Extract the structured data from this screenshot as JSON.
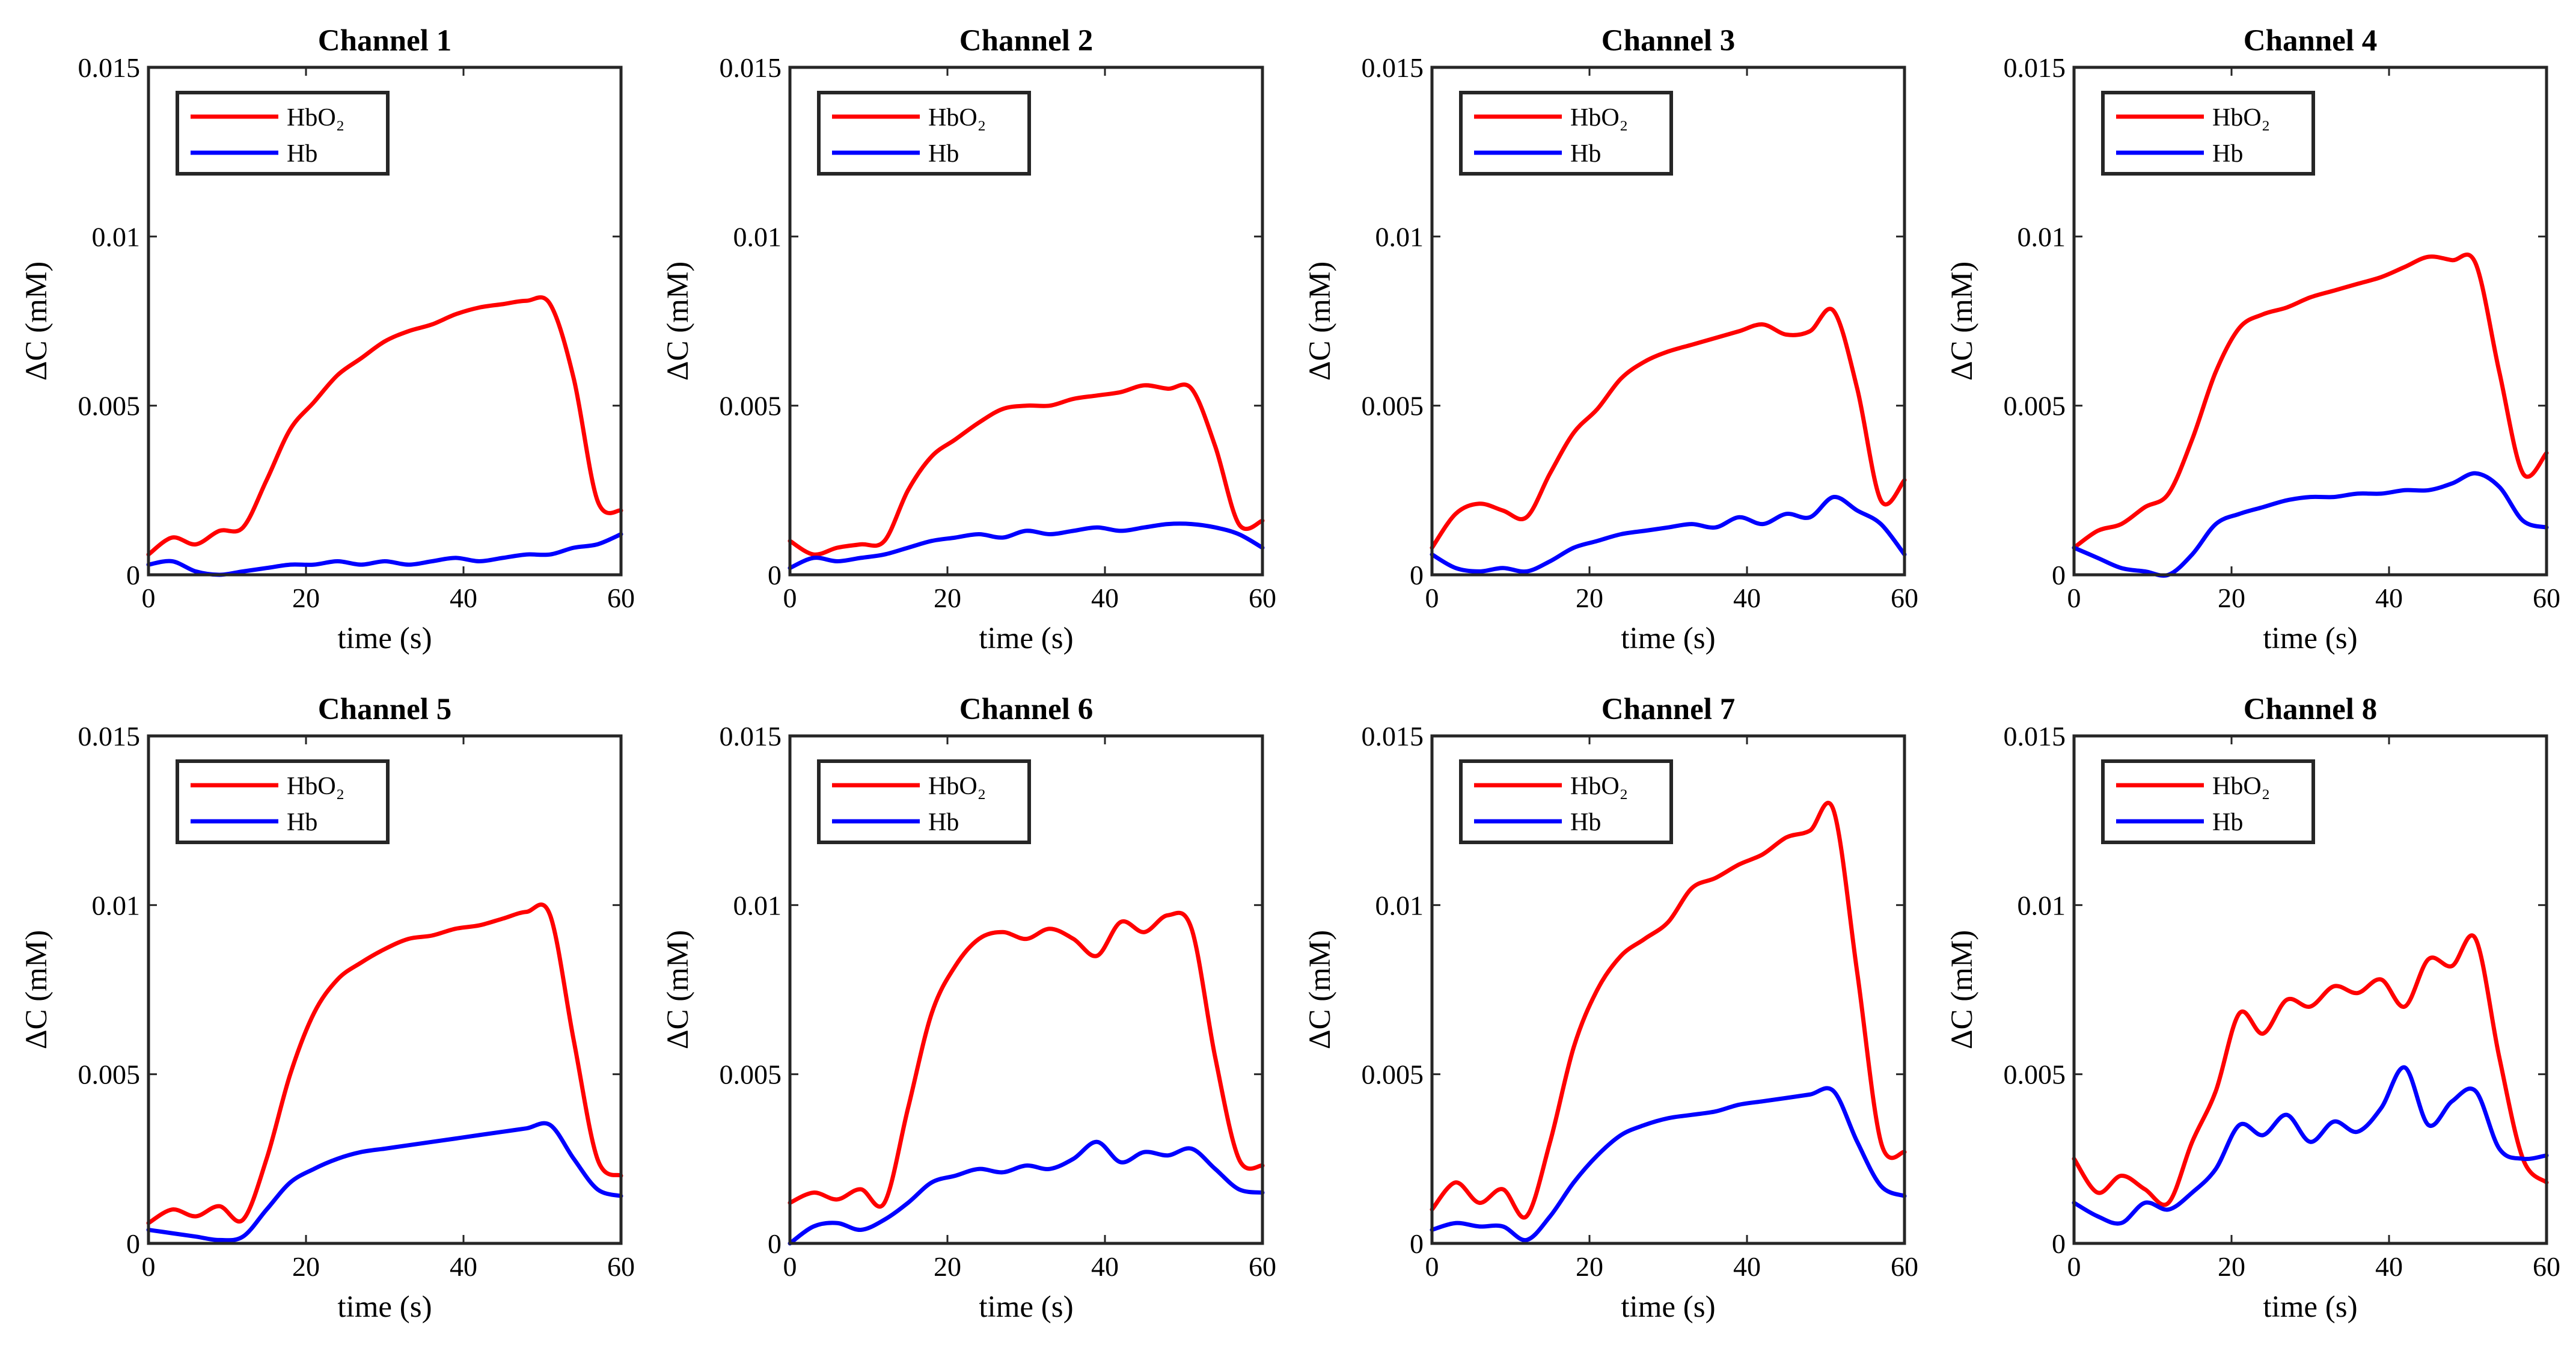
{
  "figure": {
    "background": "#ffffff"
  },
  "chart_data": [
    {
      "type": "line",
      "title": "Channel 1",
      "xlabel": "time (s)",
      "ylabel": "ΔC (mM)",
      "xlim": [
        0,
        60
      ],
      "ylim": [
        0,
        0.015
      ],
      "xticks": [
        "0",
        "20",
        "40",
        "60"
      ],
      "yticks": [
        "0",
        "0.005",
        "0.01",
        "0.015"
      ],
      "legend": {
        "position": "top-left",
        "entries": [
          "HbO₂",
          "Hb"
        ]
      },
      "x": [
        0,
        3,
        6,
        9,
        12,
        15,
        18,
        21,
        24,
        27,
        30,
        33,
        36,
        39,
        42,
        45,
        48,
        51,
        54,
        57,
        60
      ],
      "series": [
        {
          "name": "HbO₂",
          "color": "#ff0000",
          "values": [
            0.0006,
            0.0011,
            0.0009,
            0.0013,
            0.0014,
            0.0028,
            0.0043,
            0.0051,
            0.0059,
            0.0064,
            0.0069,
            0.0072,
            0.0074,
            0.0077,
            0.0079,
            0.008,
            0.0081,
            0.008,
            0.0058,
            0.0022,
            0.0019
          ]
        },
        {
          "name": "Hb",
          "color": "#0000ff",
          "values": [
            0.0003,
            0.0004,
            0.0001,
            0.0,
            0.0001,
            0.0002,
            0.0003,
            0.0003,
            0.0004,
            0.0003,
            0.0004,
            0.0003,
            0.0004,
            0.0005,
            0.0004,
            0.0005,
            0.0006,
            0.0006,
            0.0008,
            0.0009,
            0.0012
          ]
        }
      ]
    },
    {
      "type": "line",
      "title": "Channel 2",
      "xlabel": "time (s)",
      "ylabel": "ΔC (mM)",
      "xlim": [
        0,
        60
      ],
      "ylim": [
        0,
        0.015
      ],
      "xticks": [
        "0",
        "20",
        "40",
        "60"
      ],
      "yticks": [
        "0",
        "0.005",
        "0.01",
        "0.015"
      ],
      "legend": {
        "position": "top-left",
        "entries": [
          "HbO₂",
          "Hb"
        ]
      },
      "x": [
        0,
        3,
        6,
        9,
        12,
        15,
        18,
        21,
        24,
        27,
        30,
        33,
        36,
        39,
        42,
        45,
        48,
        51,
        54,
        57,
        60
      ],
      "series": [
        {
          "name": "HbO₂",
          "color": "#ff0000",
          "values": [
            0.001,
            0.0006,
            0.0008,
            0.0009,
            0.001,
            0.0025,
            0.0035,
            0.004,
            0.0045,
            0.0049,
            0.005,
            0.005,
            0.0052,
            0.0053,
            0.0054,
            0.0056,
            0.0055,
            0.0055,
            0.0038,
            0.0015,
            0.0016
          ]
        },
        {
          "name": "Hb",
          "color": "#0000ff",
          "values": [
            0.0002,
            0.0005,
            0.0004,
            0.0005,
            0.0006,
            0.0008,
            0.001,
            0.0011,
            0.0012,
            0.0011,
            0.0013,
            0.0012,
            0.0013,
            0.0014,
            0.0013,
            0.0014,
            0.0015,
            0.0015,
            0.0014,
            0.0012,
            0.0008
          ]
        }
      ]
    },
    {
      "type": "line",
      "title": "Channel 3",
      "xlabel": "time (s)",
      "ylabel": "ΔC (mM)",
      "xlim": [
        0,
        60
      ],
      "ylim": [
        0,
        0.015
      ],
      "xticks": [
        "0",
        "20",
        "40",
        "60"
      ],
      "yticks": [
        "0",
        "0.005",
        "0.01",
        "0.015"
      ],
      "legend": {
        "position": "top-left",
        "entries": [
          "HbO₂",
          "Hb"
        ]
      },
      "x": [
        0,
        3,
        6,
        9,
        12,
        15,
        18,
        21,
        24,
        27,
        30,
        33,
        36,
        39,
        42,
        45,
        48,
        51,
        54,
        57,
        60
      ],
      "series": [
        {
          "name": "HbO₂",
          "color": "#ff0000",
          "values": [
            0.0008,
            0.0018,
            0.0021,
            0.0019,
            0.0017,
            0.003,
            0.0042,
            0.0049,
            0.0058,
            0.0063,
            0.0066,
            0.0068,
            0.007,
            0.0072,
            0.0074,
            0.0071,
            0.0072,
            0.0078,
            0.0055,
            0.0022,
            0.0028
          ]
        },
        {
          "name": "Hb",
          "color": "#0000ff",
          "values": [
            0.0006,
            0.0002,
            0.0001,
            0.0002,
            0.0001,
            0.0004,
            0.0008,
            0.001,
            0.0012,
            0.0013,
            0.0014,
            0.0015,
            0.0014,
            0.0017,
            0.0015,
            0.0018,
            0.0017,
            0.0023,
            0.0019,
            0.0015,
            0.0006
          ]
        }
      ]
    },
    {
      "type": "line",
      "title": "Channel 4",
      "xlabel": "time (s)",
      "ylabel": "ΔC (mM)",
      "xlim": [
        0,
        60
      ],
      "ylim": [
        0,
        0.015
      ],
      "xticks": [
        "0",
        "20",
        "40",
        "60"
      ],
      "yticks": [
        "0",
        "0.005",
        "0.01",
        "0.015"
      ],
      "legend": {
        "position": "top-left",
        "entries": [
          "HbO₂",
          "Hb"
        ]
      },
      "x": [
        0,
        3,
        6,
        9,
        12,
        15,
        18,
        21,
        24,
        27,
        30,
        33,
        36,
        39,
        42,
        45,
        48,
        51,
        54,
        57,
        60
      ],
      "series": [
        {
          "name": "HbO₂",
          "color": "#ff0000",
          "values": [
            0.0008,
            0.0013,
            0.0015,
            0.002,
            0.0024,
            0.004,
            0.006,
            0.0073,
            0.0077,
            0.0079,
            0.0082,
            0.0084,
            0.0086,
            0.0088,
            0.0091,
            0.0094,
            0.0093,
            0.0092,
            0.006,
            0.003,
            0.0036
          ]
        },
        {
          "name": "Hb",
          "color": "#0000ff",
          "values": [
            0.0008,
            0.0005,
            0.0002,
            0.0001,
            0.0,
            0.0006,
            0.0015,
            0.0018,
            0.002,
            0.0022,
            0.0023,
            0.0023,
            0.0024,
            0.0024,
            0.0025,
            0.0025,
            0.0027,
            0.003,
            0.0026,
            0.0016,
            0.0014
          ]
        }
      ]
    },
    {
      "type": "line",
      "title": "Channel 5",
      "xlabel": "time (s)",
      "ylabel": "ΔC (mM)",
      "xlim": [
        0,
        60
      ],
      "ylim": [
        0,
        0.015
      ],
      "xticks": [
        "0",
        "20",
        "40",
        "60"
      ],
      "yticks": [
        "0",
        "0.005",
        "0.01",
        "0.015"
      ],
      "legend": {
        "position": "top-left",
        "entries": [
          "HbO₂",
          "Hb"
        ]
      },
      "x": [
        0,
        3,
        6,
        9,
        12,
        15,
        18,
        21,
        24,
        27,
        30,
        33,
        36,
        39,
        42,
        45,
        48,
        51,
        54,
        57,
        60
      ],
      "series": [
        {
          "name": "HbO₂",
          "color": "#ff0000",
          "values": [
            0.0006,
            0.001,
            0.0008,
            0.0011,
            0.0007,
            0.0025,
            0.005,
            0.0068,
            0.0078,
            0.0083,
            0.0087,
            0.009,
            0.0091,
            0.0093,
            0.0094,
            0.0096,
            0.0098,
            0.0097,
            0.006,
            0.0025,
            0.002
          ]
        },
        {
          "name": "Hb",
          "color": "#0000ff",
          "values": [
            0.0004,
            0.0003,
            0.0002,
            0.0001,
            0.0002,
            0.001,
            0.0018,
            0.0022,
            0.0025,
            0.0027,
            0.0028,
            0.0029,
            0.003,
            0.0031,
            0.0032,
            0.0033,
            0.0034,
            0.0035,
            0.0025,
            0.0016,
            0.0014
          ]
        }
      ]
    },
    {
      "type": "line",
      "title": "Channel 6",
      "xlabel": "time (s)",
      "ylabel": "ΔC (mM)",
      "xlim": [
        0,
        60
      ],
      "ylim": [
        0,
        0.015
      ],
      "xticks": [
        "0",
        "20",
        "40",
        "60"
      ],
      "yticks": [
        "0",
        "0.005",
        "0.01",
        "0.015"
      ],
      "legend": {
        "position": "top-left",
        "entries": [
          "HbO₂",
          "Hb"
        ]
      },
      "x": [
        0,
        3,
        6,
        9,
        12,
        15,
        18,
        21,
        24,
        27,
        30,
        33,
        36,
        39,
        42,
        45,
        48,
        51,
        54,
        57,
        60
      ],
      "series": [
        {
          "name": "HbO₂",
          "color": "#ff0000",
          "values": [
            0.0012,
            0.0015,
            0.0013,
            0.0016,
            0.0012,
            0.004,
            0.0068,
            0.0082,
            0.009,
            0.0092,
            0.009,
            0.0093,
            0.009,
            0.0085,
            0.0095,
            0.0092,
            0.0097,
            0.0093,
            0.0055,
            0.0025,
            0.0023
          ]
        },
        {
          "name": "Hb",
          "color": "#0000ff",
          "values": [
            0.0,
            0.0005,
            0.0006,
            0.0004,
            0.0007,
            0.0012,
            0.0018,
            0.002,
            0.0022,
            0.0021,
            0.0023,
            0.0022,
            0.0025,
            0.003,
            0.0024,
            0.0027,
            0.0026,
            0.0028,
            0.0022,
            0.0016,
            0.0015
          ]
        }
      ]
    },
    {
      "type": "line",
      "title": "Channel 7",
      "xlabel": "time (s)",
      "ylabel": "ΔC (mM)",
      "xlim": [
        0,
        60
      ],
      "ylim": [
        0,
        0.015
      ],
      "xticks": [
        "0",
        "20",
        "40",
        "60"
      ],
      "yticks": [
        "0",
        "0.005",
        "0.01",
        "0.015"
      ],
      "legend": {
        "position": "top-left",
        "entries": [
          "HbO₂",
          "Hb"
        ]
      },
      "x": [
        0,
        3,
        6,
        9,
        12,
        15,
        18,
        21,
        24,
        27,
        30,
        33,
        36,
        39,
        42,
        45,
        48,
        51,
        54,
        57,
        60
      ],
      "series": [
        {
          "name": "HbO₂",
          "color": "#ff0000",
          "values": [
            0.001,
            0.0018,
            0.0012,
            0.0016,
            0.0008,
            0.003,
            0.0058,
            0.0075,
            0.0085,
            0.009,
            0.0095,
            0.0105,
            0.0108,
            0.0112,
            0.0115,
            0.012,
            0.0122,
            0.0128,
            0.008,
            0.003,
            0.0027
          ]
        },
        {
          "name": "Hb",
          "color": "#0000ff",
          "values": [
            0.0004,
            0.0006,
            0.0005,
            0.0005,
            0.0001,
            0.0008,
            0.0018,
            0.0026,
            0.0032,
            0.0035,
            0.0037,
            0.0038,
            0.0039,
            0.0041,
            0.0042,
            0.0043,
            0.0044,
            0.0045,
            0.003,
            0.0017,
            0.0014
          ]
        }
      ]
    },
    {
      "type": "line",
      "title": "Channel 8",
      "xlabel": "time (s)",
      "ylabel": "ΔC (mM)",
      "xlim": [
        0,
        60
      ],
      "ylim": [
        0,
        0.015
      ],
      "xticks": [
        "0",
        "20",
        "40",
        "60"
      ],
      "yticks": [
        "0",
        "0.005",
        "0.01",
        "0.015"
      ],
      "legend": {
        "position": "top-left",
        "entries": [
          "HbO₂",
          "Hb"
        ]
      },
      "x": [
        0,
        3,
        6,
        9,
        12,
        15,
        18,
        21,
        24,
        27,
        30,
        33,
        36,
        39,
        42,
        45,
        48,
        51,
        54,
        57,
        60
      ],
      "series": [
        {
          "name": "HbO₂",
          "color": "#ff0000",
          "values": [
            0.0025,
            0.0015,
            0.002,
            0.0016,
            0.0012,
            0.003,
            0.0045,
            0.0068,
            0.0062,
            0.0072,
            0.007,
            0.0076,
            0.0074,
            0.0078,
            0.007,
            0.0084,
            0.0082,
            0.009,
            0.0055,
            0.0025,
            0.0018
          ]
        },
        {
          "name": "Hb",
          "color": "#0000ff",
          "values": [
            0.0012,
            0.0008,
            0.0006,
            0.0012,
            0.001,
            0.0015,
            0.0022,
            0.0035,
            0.0032,
            0.0038,
            0.003,
            0.0036,
            0.0033,
            0.004,
            0.0052,
            0.0035,
            0.0042,
            0.0045,
            0.0028,
            0.0025,
            0.0026
          ]
        }
      ]
    }
  ]
}
